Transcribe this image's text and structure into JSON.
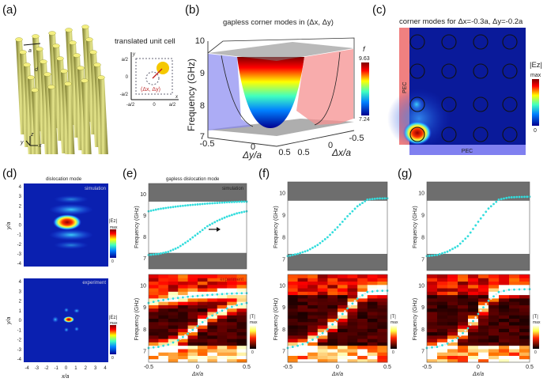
{
  "panels": {
    "a": {
      "label": "(a)",
      "inset_title": "translated unit cell",
      "lattice_label": "a",
      "rod_label": "d",
      "axis_x": "x",
      "axis_y": "y",
      "axis_z": "z",
      "inset_ticks_x": [
        "-a/2",
        "0",
        "a/2"
      ],
      "inset_ticks_y": [
        "a/2",
        "0",
        "-a/2"
      ],
      "displacement": "(Δx, Δy)"
    },
    "b": {
      "label": "(b)",
      "title": "gapless corner modes in (Δx, Δy)",
      "ylabel": "Frequency (GHz)",
      "yticks": [
        "10",
        "9",
        "8",
        "7"
      ],
      "dy_label": "Δy/a",
      "dy_ticks": [
        "-0.5",
        "0",
        "0.5"
      ],
      "dx_label": "Δx/a",
      "dx_ticks": [
        "0.5",
        "0",
        "-0.5"
      ],
      "colorbar_title": "f",
      "colorbar_max": "9.63",
      "colorbar_min": "7.24"
    },
    "c": {
      "label": "(c)",
      "title": "corner modes for Δx=-0.3a, Δy=-0.2a",
      "pec_left": "PEC",
      "pec_bottom": "PEC",
      "colorbar_title": "|Ez|",
      "colorbar_max": "max",
      "colorbar_min": "0"
    },
    "d": {
      "label": "(d)",
      "title": "dislocation mode",
      "top_tag": "simulation",
      "bottom_tag": "experiment",
      "ylabel": "y/a",
      "xlabel": "x/a",
      "ticks": [
        "-4",
        "-3",
        "-2",
        "-1",
        "0",
        "1",
        "2",
        "3",
        "4"
      ],
      "colorbar_title": "|Ez|",
      "colorbar_max": "max",
      "colorbar_min": "0"
    },
    "e": {
      "label": "(e)",
      "title": "gapless dislocation mode",
      "top_tag": "simulation",
      "bottom_tag": "experiment"
    },
    "f": {
      "label": "(f)"
    },
    "g": {
      "label": "(g)"
    },
    "common": {
      "ylabel": "Frequency (GHz)",
      "xlabel": "Δx/a",
      "yticks": [
        "7",
        "8",
        "9",
        "10"
      ],
      "xticks": [
        "-0.5",
        "0",
        "0.5"
      ],
      "heat_colorbar_title": "|T|",
      "heat_colorbar_max": "max",
      "heat_colorbar_min": "0"
    }
  },
  "colors": {
    "curve": "#33dddd",
    "bandgap": "#6e6e6e",
    "field_bg": "#0a1a9a",
    "pec_left": "#f08080",
    "pec_bottom": "#8080f0",
    "rod": "#d8d870"
  },
  "chart_data": [
    {
      "panel": "e",
      "type": "line",
      "xlabel": "Δx/a",
      "ylabel": "Frequency (GHz)",
      "xlim": [
        -0.5,
        0.5
      ],
      "ylim": [
        6.5,
        10.5
      ],
      "bandgap_shading": [
        [
          6.5,
          7.25
        ],
        [
          9.65,
          10.5
        ]
      ],
      "x": [
        -0.5,
        -0.4,
        -0.3,
        -0.2,
        -0.1,
        0,
        0.1,
        0.2,
        0.3,
        0.4,
        0.5
      ],
      "series": [
        {
          "values": [
            9.2,
            9.3,
            9.37,
            9.43,
            9.48,
            9.52,
            9.56,
            9.59,
            9.62,
            9.64,
            9.65
          ]
        },
        {
          "values": [
            7.15,
            7.2,
            7.3,
            7.5,
            7.8,
            8.15,
            8.5,
            8.75,
            8.95,
            9.1,
            9.2
          ]
        }
      ]
    },
    {
      "panel": "f",
      "type": "line",
      "xlabel": "Δx/a",
      "ylabel": "Frequency (GHz)",
      "xlim": [
        -0.5,
        0.5
      ],
      "ylim": [
        6.5,
        10.5
      ],
      "bandgap_shading": [
        [
          6.5,
          7.25
        ],
        [
          9.65,
          10.5
        ]
      ],
      "x": [
        -0.5,
        -0.4,
        -0.3,
        -0.2,
        -0.1,
        0,
        0.1,
        0.2,
        0.3,
        0.4,
        0.5
      ],
      "series": [
        {
          "values": [
            7.15,
            7.25,
            7.4,
            7.65,
            8.0,
            8.45,
            8.95,
            9.4,
            9.7,
            9.75,
            9.76
          ]
        }
      ]
    },
    {
      "panel": "g",
      "type": "line",
      "xlabel": "Δx/a",
      "ylabel": "Frequency (GHz)",
      "xlim": [
        -0.5,
        0.5
      ],
      "ylim": [
        6.5,
        10.5
      ],
      "bandgap_shading": [
        [
          6.5,
          7.25
        ],
        [
          9.65,
          10.5
        ]
      ],
      "x": [
        -0.5,
        -0.4,
        -0.3,
        -0.2,
        -0.1,
        0,
        0.1,
        0.2,
        0.3,
        0.4,
        0.5
      ],
      "series": [
        {
          "values": [
            7.15,
            7.2,
            7.35,
            7.6,
            8.05,
            8.7,
            9.3,
            9.7,
            9.8,
            9.82,
            9.83
          ]
        }
      ]
    }
  ]
}
